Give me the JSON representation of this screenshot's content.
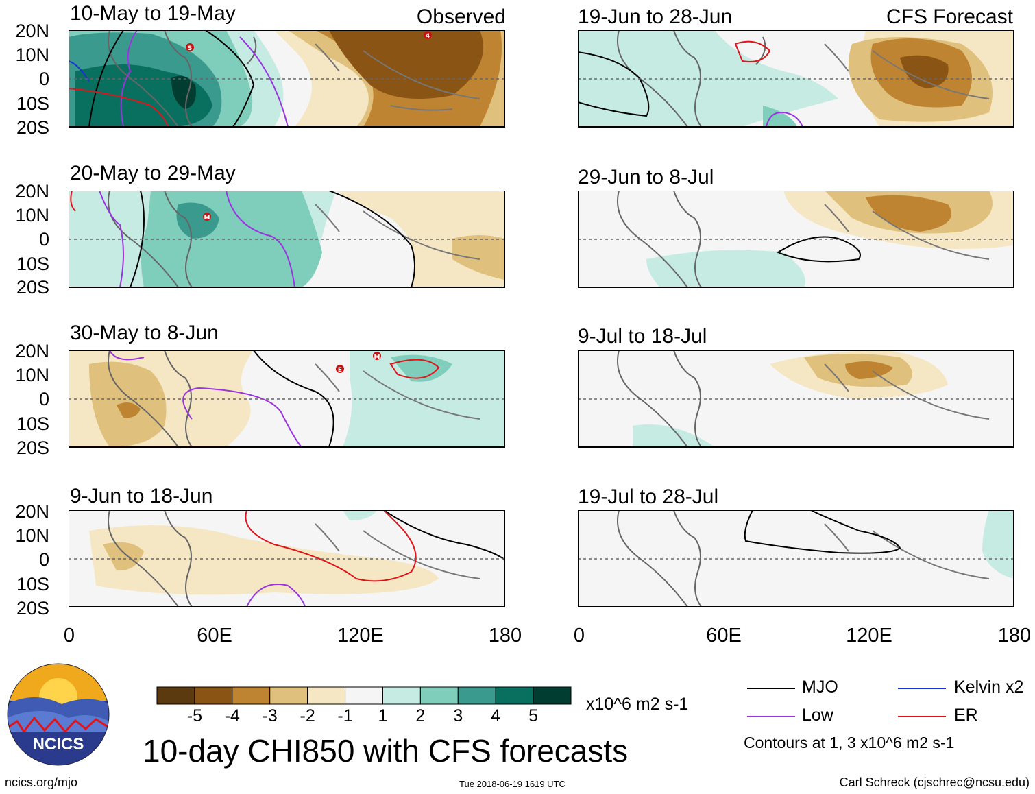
{
  "header": {
    "left_label": "Observed",
    "right_label": "CFS Forecast"
  },
  "panels_left": [
    {
      "title": "10-May to 19-May"
    },
    {
      "title": "20-May to 29-May"
    },
    {
      "title": "30-May to 8-Jun"
    },
    {
      "title": "9-Jun to 18-Jun"
    }
  ],
  "panels_right": [
    {
      "title": "19-Jun to 28-Jun"
    },
    {
      "title": "29-Jun to 8-Jul"
    },
    {
      "title": "9-Jul to 18-Jul"
    },
    {
      "title": "19-Jul to 28-Jul"
    }
  ],
  "lat_labels": [
    "20N",
    "10N",
    "0",
    "10S",
    "20S"
  ],
  "lon_labels": [
    "0",
    "60E",
    "120E",
    "180"
  ],
  "storm_markers": [
    "S",
    "4",
    "M",
    "E",
    "M"
  ],
  "colorbar": {
    "ticks": [
      "-5",
      "-4",
      "-3",
      "-2",
      "-1",
      "1",
      "2",
      "3",
      "4",
      "5"
    ],
    "colors": [
      "#5c3a0f",
      "#8a5414",
      "#bf8431",
      "#dfc07d",
      "#f6e7c4",
      "#f5f5f5",
      "#c6ebe2",
      "#7fcdbb",
      "#3a9a8d",
      "#09705f",
      "#023d32"
    ],
    "units": "x10^6 m2 s-1"
  },
  "legend": {
    "items": [
      {
        "label": "MJO",
        "color": "#000000"
      },
      {
        "label": "Kelvin x2",
        "color": "#1f2fd6"
      },
      {
        "label": "Low",
        "color": "#9a34e0"
      },
      {
        "label": "ER",
        "color": "#e0141a"
      }
    ],
    "contour_note": "Contours at 1, 3 x10^6 m2 s-1"
  },
  "main_title": "10-day CHI850 with CFS forecasts",
  "logo_text": "NCICS",
  "footer": {
    "url": "ncics.org/mjo",
    "timestamp": "Tue 2018-06-19 1619 UTC",
    "author": "Carl Schreck (cjschrec@ncsu.edu)"
  }
}
